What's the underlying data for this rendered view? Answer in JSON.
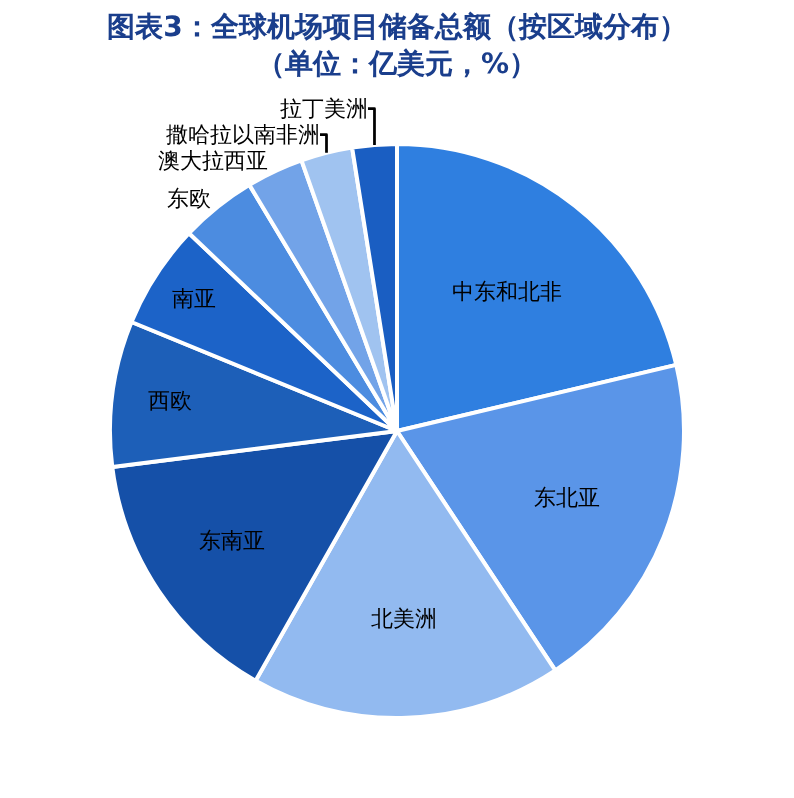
{
  "chart_data": {
    "type": "pie",
    "title": "图表3：全球机场项目储备总额（按区域分布）",
    "subtitle": "（单位：亿美元，%）",
    "categories": [
      "中东和北非",
      "东北亚",
      "北美洲",
      "东南亚",
      "西欧",
      "南亚",
      "东欧",
      "澳大拉西亚",
      "撒哈拉以南非洲",
      "拉丁美洲"
    ],
    "values": [
      21.3,
      19.4,
      17.5,
      14.8,
      8.2,
      5.9,
      4.3,
      3.2,
      2.9,
      2.5
    ],
    "colors": [
      "#2f7fe0",
      "#5a95e8",
      "#92baf0",
      "#1550a8",
      "#1d5fb8",
      "#1c63c8",
      "#4c8ce0",
      "#72a3e8",
      "#a0c3f0",
      "#1a5ec2"
    ],
    "legend": false
  }
}
